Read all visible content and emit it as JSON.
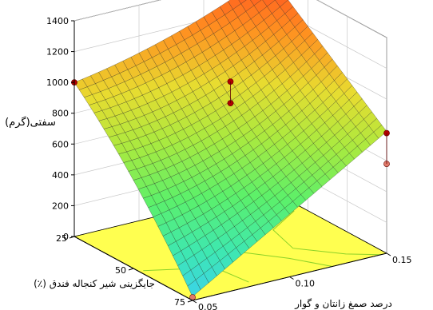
{
  "chart_data": {
    "type": "surface3d",
    "zlabel": "سفتی(گرم)",
    "xlabel": "جایگزینی شیر کنجاله فندق (٪)",
    "ylabel": "درصد صمغ زانتان و گوار",
    "z_ticks": [
      "0",
      "200",
      "400",
      "600",
      "800",
      "1000",
      "1200",
      "1400"
    ],
    "x_ticks": [
      "25",
      "50",
      "75"
    ],
    "y_ticks": [
      "0.05",
      "0.10",
      "0.15"
    ],
    "zlim": [
      0,
      1400
    ],
    "xlim": [
      25,
      75
    ],
    "ylim": [
      0.05,
      0.15
    ],
    "surface_corners": [
      {
        "x": 25,
        "y": 0.05,
        "z": 1000
      },
      {
        "x": 25,
        "y": 0.15,
        "z": 1400
      },
      {
        "x": 75,
        "y": 0.15,
        "z": 790
      },
      {
        "x": 75,
        "y": 0.05,
        "z": 25
      }
    ],
    "design_points": [
      {
        "x": 25,
        "y": 0.05,
        "z": 1000,
        "position": "above"
      },
      {
        "x": 75,
        "y": 0.05,
        "z": 20,
        "position": "below"
      },
      {
        "x": 75,
        "y": 0.15,
        "z": 780,
        "position": "above"
      },
      {
        "x": 75,
        "y": 0.15,
        "z": 580,
        "position": "below"
      },
      {
        "x": 50,
        "y": 0.1,
        "z": 1060,
        "position": "above"
      },
      {
        "x": 50,
        "y": 0.1,
        "z": 920,
        "position": "above"
      }
    ],
    "colormap": [
      "#3ad0f0",
      "#3ee8b0",
      "#5cf06a",
      "#a8ea40",
      "#e8dc30",
      "#ff9020",
      "#ff4a20"
    ],
    "floor_color": "#ffff50",
    "floor_contour_color": "#8cd228",
    "point_color": "#b00000",
    "point_color_below": "#e07a6a",
    "grid": true
  }
}
